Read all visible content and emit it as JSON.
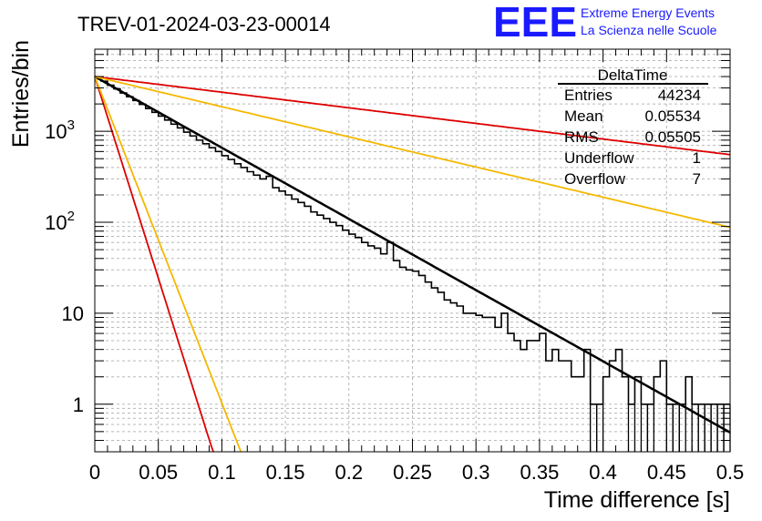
{
  "header": {
    "run_title": "TREV-01-2024-03-23-00014",
    "logo_text": "EEE",
    "logo_line1": "Extreme Energy Events",
    "logo_line2": "La Scienza nelle Scuole",
    "logo_color": "#1a1aff"
  },
  "chart_data": {
    "type": "histogram",
    "title": "TREV-01-2024-03-23-00014",
    "xlabel": "Time difference [s]",
    "ylabel": "Entries/bin",
    "xlim": [
      0,
      0.5
    ],
    "ylim": [
      0.3,
      8000
    ],
    "y_scale": "log",
    "grid": true,
    "x_tick_labels": [
      "0",
      "0.05",
      "0.1",
      "0.15",
      "0.2",
      "0.25",
      "0.3",
      "0.35",
      "0.4",
      "0.45",
      "0.5"
    ],
    "x_ticks": [
      0,
      0.05,
      0.1,
      0.15,
      0.2,
      0.25,
      0.3,
      0.35,
      0.4,
      0.45,
      0.5
    ],
    "y_tick_labels": [
      "1",
      "10",
      "10^2",
      "10^3"
    ],
    "y_ticks": [
      1,
      10,
      100,
      1000
    ],
    "histogram": {
      "name": "DeltaTime",
      "color": "#000000",
      "x_start": 0,
      "bin_width": 0.005,
      "counts": [
        3940,
        3560,
        3210,
        2930,
        2640,
        2400,
        2180,
        1980,
        1780,
        1620,
        1470,
        1330,
        1200,
        1090,
        980,
        890,
        800,
        730,
        660,
        600,
        540,
        490,
        440,
        400,
        360,
        330,
        300,
        320,
        240,
        220,
        200,
        180,
        165,
        150,
        130,
        120,
        110,
        100,
        92,
        82,
        74,
        68,
        60,
        55,
        52,
        45,
        60,
        38,
        32,
        30,
        29,
        26,
        22,
        19,
        17,
        14,
        13,
        12,
        10,
        10,
        9.5,
        9,
        9,
        7,
        10,
        6,
        5,
        4,
        5,
        5,
        6,
        3,
        4,
        3,
        3,
        2,
        2,
        4,
        1,
        1,
        2,
        3,
        4,
        2,
        1,
        2,
        1,
        1,
        2,
        3,
        1,
        1,
        1,
        2,
        1,
        1,
        1,
        1,
        1,
        1
      ],
      "mode_note": ""
    },
    "fits": [
      {
        "name": "",
        "color": "#000000",
        "A": 4000,
        "b": 0.0555,
        "width": 2.5
      },
      {
        "name": "",
        "color": "#dd0000",
        "A": 4000,
        "b": 0.253,
        "width": 1.8
      },
      {
        "name": "",
        "color": "#f5b800",
        "A": 4000,
        "b": 0.131,
        "width": 1.8
      },
      {
        "name": "",
        "color": "#dd0000",
        "A": 4000,
        "b": 0.0098,
        "width": 1.8
      },
      {
        "name": "",
        "color": "#f5b800",
        "A": 4000,
        "b": 0.0121,
        "width": 1.8
      }
    ]
  },
  "stats_box": {
    "title": "DeltaTime",
    "rows": [
      {
        "label": "Entries",
        "value": "44234"
      },
      {
        "label": "Mean",
        "value": "0.05534"
      },
      {
        "label": "RMS",
        "value": "0.05505"
      },
      {
        "label": "Underflow",
        "value": "1"
      },
      {
        "label": "Overflow",
        "value": "7"
      }
    ]
  }
}
